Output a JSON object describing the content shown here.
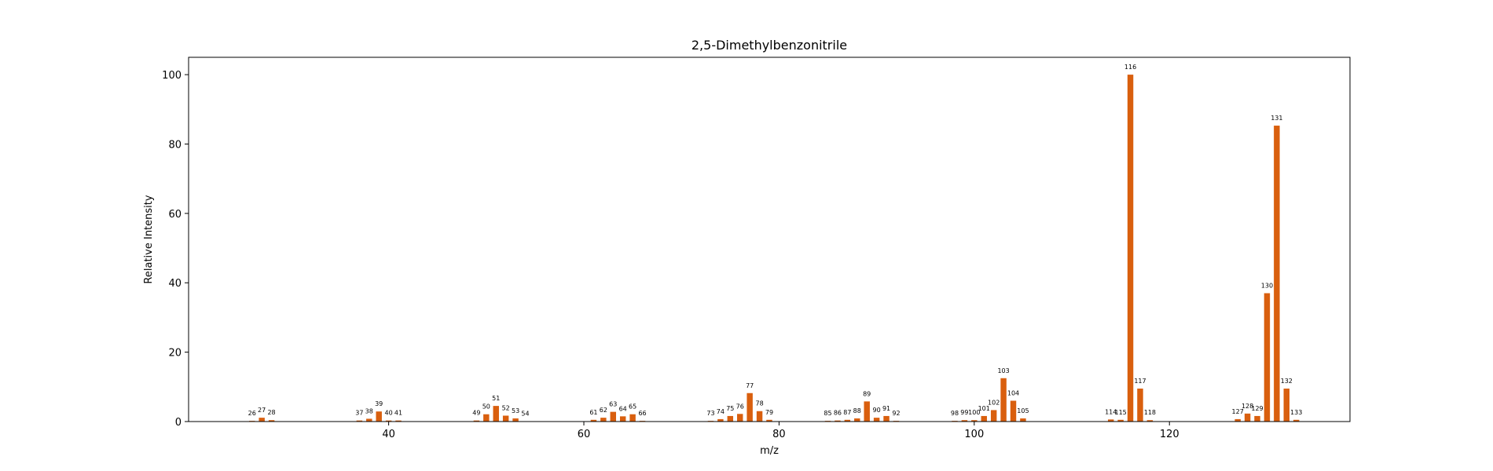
{
  "chart_data": {
    "type": "bar",
    "title": "2,5-Dimethylbenzonitrile",
    "xlabel": "m/z",
    "ylabel": "Relative Intensity",
    "xlim": [
      19.5,
      138.5
    ],
    "ylim": [
      0,
      105
    ],
    "xticks": [
      40,
      60,
      80,
      100,
      120
    ],
    "yticks": [
      0,
      20,
      40,
      60,
      80,
      100
    ],
    "bar_color": "#d95f0e",
    "grid": false,
    "x": [
      26,
      27,
      28,
      37,
      38,
      39,
      40,
      41,
      49,
      50,
      51,
      52,
      53,
      54,
      61,
      62,
      63,
      64,
      65,
      66,
      73,
      74,
      75,
      76,
      77,
      78,
      79,
      85,
      86,
      87,
      88,
      89,
      90,
      91,
      92,
      98,
      99,
      100,
      101,
      102,
      103,
      104,
      105,
      114,
      115,
      116,
      117,
      118,
      127,
      128,
      129,
      130,
      131,
      132,
      133
    ],
    "values": [
      0.2,
      1.1,
      0.4,
      0.3,
      0.8,
      2.9,
      0.3,
      0.3,
      0.3,
      2.1,
      4.5,
      1.7,
      0.9,
      0.1,
      0.5,
      1.1,
      2.8,
      1.5,
      2.1,
      0.2,
      0.2,
      0.7,
      1.6,
      2.2,
      8.2,
      3.0,
      0.5,
      0.2,
      0.3,
      0.5,
      0.9,
      5.8,
      1.1,
      1.6,
      0.2,
      0.2,
      0.4,
      0.4,
      1.6,
      3.3,
      12.5,
      6.0,
      0.9,
      0.6,
      0.5,
      100,
      9.5,
      0.4,
      0.7,
      2.3,
      1.6,
      37,
      85.3,
      9.5,
      0.5
    ],
    "labels": [
      "26",
      "27",
      "28",
      "37",
      "38",
      "39",
      "40",
      "41",
      "49",
      "50",
      "51",
      "52",
      "53",
      "54",
      "61",
      "62",
      "63",
      "64",
      "65",
      "66",
      "73",
      "74",
      "75",
      "76",
      "77",
      "78",
      "79",
      "85",
      "86",
      "87",
      "88",
      "89",
      "90",
      "91",
      "92",
      "98",
      "99",
      "100",
      "101",
      "102",
      "103",
      "104",
      "105",
      "114",
      "115",
      "116",
      "117",
      "118",
      "127",
      "128",
      "129",
      "130",
      "131",
      "132",
      "133"
    ]
  }
}
